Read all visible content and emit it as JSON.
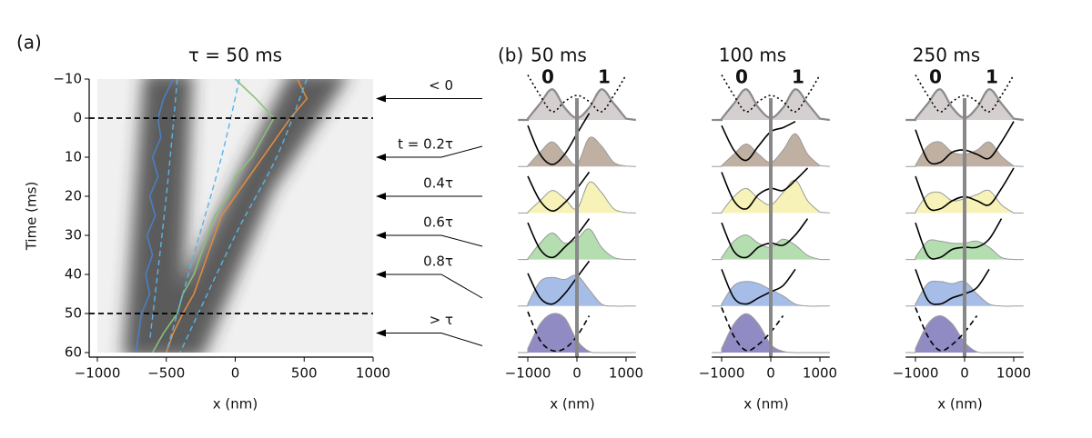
{
  "labels": {
    "a": "(a)",
    "b": "(b)"
  },
  "chart_data": [
    {
      "type": "trajectory",
      "title": "τ = 50 ms",
      "x_label": "x (nm)",
      "y_label": "Time (ms)",
      "xlim": [
        -1000,
        1000
      ],
      "ylim": [
        -10,
        60
      ],
      "y_inverted": true,
      "xticks": [
        {
          "value": -1000,
          "label": "−1000"
        },
        {
          "value": -500,
          "label": "−500"
        },
        0,
        500,
        1000
      ],
      "yticks": [
        {
          "value": -10,
          "label": "−10"
        },
        0,
        10,
        20,
        30,
        40,
        50,
        60
      ],
      "hlines": [
        0,
        50
      ],
      "series": [
        {
          "color": "#4a7fc1",
          "line_style": "solid",
          "x": [
            -450,
            -520,
            -560,
            -540,
            -600,
            -560,
            -620,
            -580,
            -640,
            -600,
            -650,
            -620,
            -680,
            -700,
            -720
          ],
          "values": [
            -10,
            -5,
            0,
            5,
            10,
            15,
            20,
            25,
            30,
            35,
            40,
            45,
            50,
            55,
            60
          ]
        },
        {
          "color": "#8bbf7a",
          "line_style": "solid",
          "x": [
            0,
            150,
            280,
            200,
            120,
            0,
            -50,
            -150,
            -200,
            -250,
            -300,
            -380,
            -420,
            -520,
            -600
          ],
          "values": [
            -10,
            -5,
            0,
            5,
            10,
            15,
            20,
            25,
            30,
            35,
            40,
            45,
            50,
            55,
            60
          ]
        },
        {
          "color": "#e08a3c",
          "line_style": "solid",
          "x": [
            450,
            520,
            400,
            300,
            200,
            100,
            0,
            -100,
            -150,
            -200,
            -250,
            -300,
            -380,
            -450,
            -500
          ],
          "values": [
            -10,
            -5,
            0,
            5,
            10,
            15,
            20,
            25,
            30,
            35,
            40,
            45,
            50,
            55,
            60
          ]
        },
        {
          "color": "#5ab4e5",
          "line_style": "dashed",
          "x": [
            -420,
            -500,
            -620
          ],
          "values": [
            -10,
            20,
            57
          ]
        },
        {
          "color": "#5ab4e5",
          "line_style": "dashed",
          "x": [
            30,
            -100,
            -300,
            -500
          ],
          "values": [
            -10,
            10,
            35,
            60
          ]
        },
        {
          "color": "#5ab4e5",
          "line_style": "dashed",
          "x": [
            520,
            300,
            0,
            -400
          ],
          "values": [
            -10,
            10,
            30,
            60
          ]
        }
      ],
      "annotations": [
        {
          "text": "< 0",
          "y": -5
        },
        {
          "text": "t = 0.2τ",
          "y": 10
        },
        {
          "text": "0.4τ",
          "y": 20
        },
        {
          "text": "0.6τ",
          "y": 30
        },
        {
          "text": "0.8τ",
          "y": 40
        },
        {
          "text": "> τ",
          "y": 55
        }
      ]
    },
    {
      "type": "ridgeline",
      "title": "50 ms",
      "state_labels": [
        "0",
        "1"
      ],
      "x_label": "x (nm)",
      "xlim": [
        -1200,
        1200
      ],
      "xticks": [
        {
          "value": -1000,
          "label": "−1000"
        },
        0,
        1000
      ],
      "x": [
        -1000,
        -750,
        -500,
        -250,
        0,
        250,
        500,
        750,
        1000
      ],
      "rows": [
        {
          "color": "#d6cfcf",
          "density": [
            0.03,
            0.4,
            0.75,
            0.3,
            0.05,
            0.3,
            0.75,
            0.4,
            0.03
          ],
          "potential": [
            1.1,
            0.6,
            0.2,
            0.45,
            0.6,
            0.45,
            0.2,
            0.6,
            1.1
          ],
          "potential_style": "dotted"
        },
        {
          "color": "#bfb0a2",
          "density": [
            0.02,
            0.35,
            0.6,
            0.3,
            0.05,
            0.7,
            0.5,
            0.1,
            0.01
          ],
          "potential": [
            1.0,
            0.3,
            0.05,
            0.3,
            0.8,
            1.3,
            null,
            null,
            null
          ],
          "potential_style": "solid"
        },
        {
          "color": "#f7f2b8",
          "density": [
            0.02,
            0.3,
            0.55,
            0.35,
            0.1,
            0.75,
            0.5,
            0.1,
            0.01
          ],
          "potential": [
            0.9,
            0.3,
            0.05,
            0.25,
            0.6,
            1.0,
            null,
            null,
            null
          ],
          "potential_style": "solid"
        },
        {
          "color": "#b5deb0",
          "density": [
            0.02,
            0.4,
            0.65,
            0.4,
            0.5,
            0.75,
            0.3,
            0.05,
            0
          ],
          "potential": [
            0.9,
            0.25,
            0.05,
            0.3,
            0.6,
            1.0,
            null,
            null,
            null
          ],
          "potential_style": "solid"
        },
        {
          "color": "#a6bde8",
          "density": [
            0.05,
            0.6,
            0.7,
            0.65,
            0.75,
            0.4,
            0.05,
            0,
            0
          ],
          "potential": [
            0.8,
            0.2,
            0.05,
            0.3,
            0.7,
            1.1,
            null,
            null,
            null
          ],
          "potential_style": "solid"
        },
        {
          "color": "#918bc4",
          "density": [
            0.1,
            0.7,
            0.95,
            0.85,
            0.3,
            0.03,
            0,
            0,
            0
          ],
          "potential": [
            1.0,
            0.3,
            0.05,
            0.1,
            0.4,
            0.9,
            null,
            null,
            null
          ],
          "potential_style": "dashed"
        }
      ]
    },
    {
      "type": "ridgeline",
      "title": "100 ms",
      "state_labels": [
        "0",
        "1"
      ],
      "x_label": "x (nm)",
      "xlim": [
        -1200,
        1200
      ],
      "xticks": [
        {
          "value": -1000,
          "label": "−1000"
        },
        0,
        1000
      ],
      "x": [
        -1000,
        -750,
        -500,
        -250,
        0,
        250,
        500,
        750,
        1000
      ],
      "rows": [
        {
          "color": "#d6cfcf",
          "density": [
            0.03,
            0.4,
            0.75,
            0.3,
            0.05,
            0.3,
            0.75,
            0.4,
            0.03
          ],
          "potential": [
            1.1,
            0.6,
            0.2,
            0.45,
            0.6,
            0.45,
            0.2,
            0.6,
            1.1
          ],
          "potential_style": "dotted"
        },
        {
          "color": "#bfb0a2",
          "density": [
            0.02,
            0.3,
            0.55,
            0.3,
            0.1,
            0.4,
            0.8,
            0.3,
            0.02
          ],
          "potential": [
            1.0,
            0.4,
            0.15,
            0.5,
            0.85,
            0.95,
            1.1,
            null,
            null
          ],
          "potential_style": "solid"
        },
        {
          "color": "#f7f2b8",
          "density": [
            0.02,
            0.4,
            0.6,
            0.35,
            0.2,
            0.5,
            0.8,
            0.3,
            0.02
          ],
          "potential": [
            1.0,
            0.3,
            0.1,
            0.45,
            0.6,
            0.55,
            0.8,
            1.1,
            null
          ],
          "potential_style": "solid"
        },
        {
          "color": "#b5deb0",
          "density": [
            0.05,
            0.45,
            0.6,
            0.4,
            0.3,
            0.5,
            0.35,
            0.1,
            0
          ],
          "potential": [
            0.9,
            0.2,
            0.05,
            0.3,
            0.4,
            0.35,
            0.6,
            1.0,
            null
          ],
          "potential_style": "solid"
        },
        {
          "color": "#a6bde8",
          "density": [
            0.05,
            0.5,
            0.6,
            0.55,
            0.4,
            0.25,
            0.05,
            0,
            0
          ],
          "potential": [
            0.9,
            0.2,
            0.05,
            0.2,
            0.35,
            0.5,
            0.9,
            null,
            null
          ],
          "potential_style": "solid"
        },
        {
          "color": "#918bc4",
          "density": [
            0.1,
            0.7,
            0.95,
            0.7,
            0.2,
            0.03,
            0,
            0,
            0
          ],
          "potential": [
            1.1,
            0.4,
            0.05,
            0.2,
            0.5,
            0.9,
            null,
            null,
            null
          ],
          "potential_style": "dashed"
        }
      ]
    },
    {
      "type": "ridgeline",
      "title": "250 ms",
      "state_labels": [
        "0",
        "1"
      ],
      "x_label": "x (nm)",
      "xlim": [
        -1200,
        1200
      ],
      "xticks": [
        {
          "value": -1000,
          "label": "−1000"
        },
        0,
        1000
      ],
      "x": [
        -1000,
        -750,
        -500,
        -250,
        0,
        250,
        500,
        750,
        1000
      ],
      "rows": [
        {
          "color": "#d6cfcf",
          "density": [
            0.03,
            0.4,
            0.75,
            0.3,
            0.05,
            0.3,
            0.75,
            0.4,
            0.03
          ],
          "potential": [
            1.1,
            0.6,
            0.2,
            0.45,
            0.6,
            0.45,
            0.2,
            0.6,
            1.1
          ],
          "potential_style": "dotted"
        },
        {
          "color": "#bfb0a2",
          "density": [
            0.03,
            0.5,
            0.6,
            0.35,
            0.3,
            0.4,
            0.6,
            0.25,
            0.01
          ],
          "potential": [
            0.9,
            0.15,
            0.1,
            0.35,
            0.4,
            0.3,
            0.2,
            0.6,
            1.1
          ],
          "potential_style": "solid"
        },
        {
          "color": "#f7f2b8",
          "density": [
            0.03,
            0.45,
            0.5,
            0.3,
            0.35,
            0.45,
            0.55,
            0.2,
            0
          ],
          "potential": [
            0.9,
            0.15,
            0.1,
            0.3,
            0.4,
            0.3,
            0.2,
            0.6,
            1.1
          ],
          "potential_style": "solid"
        },
        {
          "color": "#b5deb0",
          "density": [
            0.05,
            0.45,
            0.45,
            0.4,
            0.4,
            0.45,
            0.3,
            0.05,
            0
          ],
          "potential": [
            0.9,
            0.1,
            0.05,
            0.25,
            0.3,
            0.3,
            0.5,
            1.0,
            null
          ],
          "potential_style": "solid"
        },
        {
          "color": "#a6bde8",
          "density": [
            0.05,
            0.55,
            0.6,
            0.55,
            0.6,
            0.3,
            0.05,
            0,
            0
          ],
          "potential": [
            0.9,
            0.15,
            0.05,
            0.2,
            0.3,
            0.45,
            0.9,
            null,
            null
          ],
          "potential_style": "solid"
        },
        {
          "color": "#918bc4",
          "density": [
            0.1,
            0.7,
            0.9,
            0.7,
            0.25,
            0.02,
            0,
            0,
            0
          ],
          "potential": [
            1.1,
            0.4,
            0.05,
            0.2,
            0.5,
            0.9,
            null,
            null,
            null
          ],
          "potential_style": "dashed"
        }
      ]
    }
  ]
}
